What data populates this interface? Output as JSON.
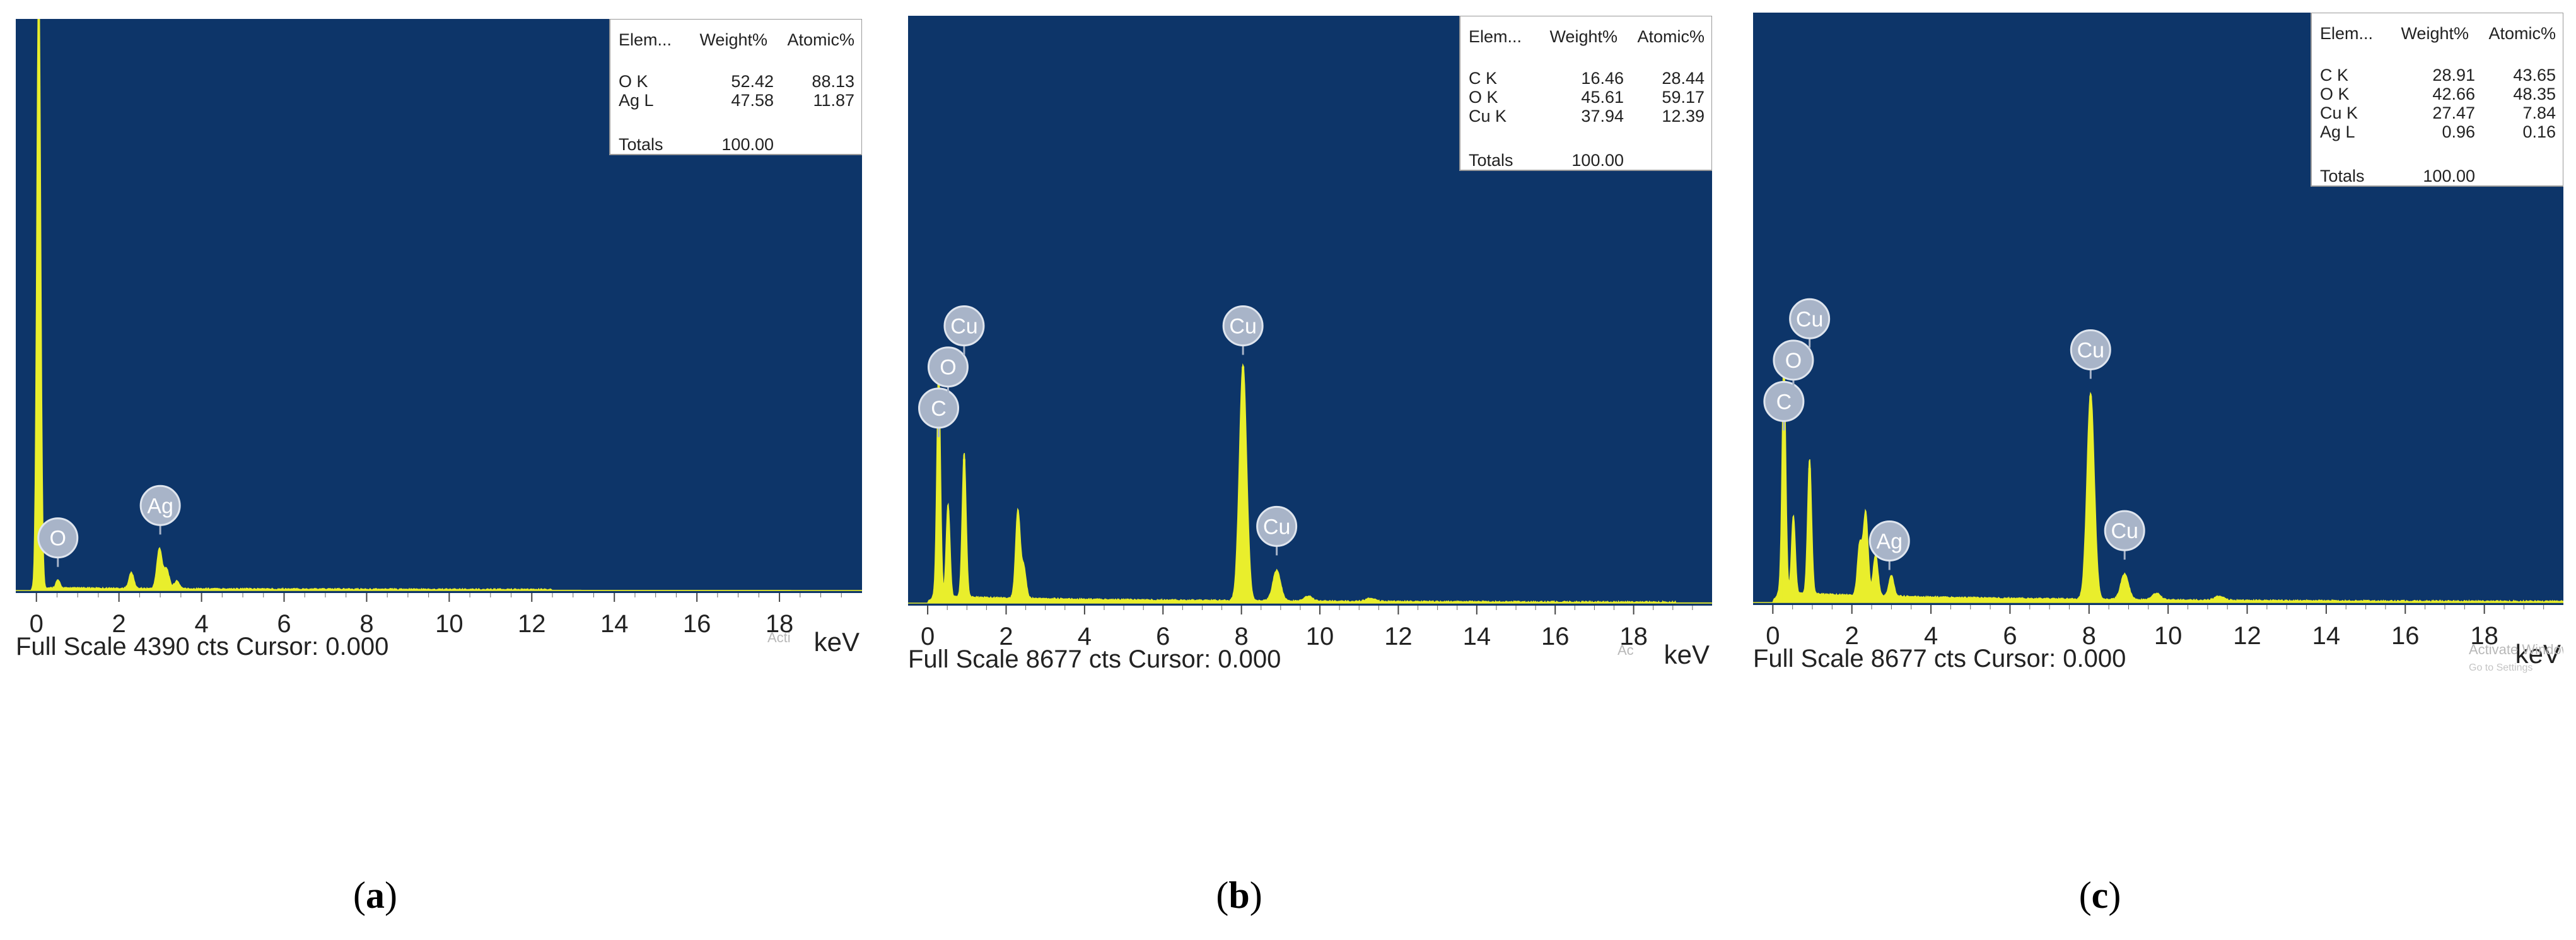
{
  "colors": {
    "plot_bg": "#0d3569",
    "spectrum": "#e9ee2c",
    "badge": "#a8b4c8",
    "badge_border": "#dfe5ee"
  },
  "chart_data": [
    {
      "type": "area",
      "panel_label": "a",
      "xlabel": "keV",
      "footer": "Full Scale 4390 cts Cursor: 0.000",
      "watermark": "Acti",
      "xlim": [
        -0.5,
        20
      ],
      "xticks": [
        "0",
        "2",
        "4",
        "6",
        "8",
        "10",
        "12",
        "14",
        "16",
        "18"
      ],
      "table": {
        "headers": [
          "Elem...",
          "Weight%",
          "Atomic%"
        ],
        "rows": [
          [
            "O K",
            "52.42",
            "88.13"
          ],
          [
            "Ag L",
            "47.58",
            "11.87"
          ]
        ],
        "totals_label": "Totals",
        "totals_value": "100.00"
      },
      "peaks": [
        {
          "x": 0.05,
          "y": 100
        },
        {
          "x": 0.08,
          "y": 30
        },
        {
          "x": 0.52,
          "y": 1.6
        },
        {
          "x": 2.3,
          "y": 3.2
        },
        {
          "x": 2.98,
          "y": 8
        },
        {
          "x": 3.15,
          "y": 4
        },
        {
          "x": 3.4,
          "y": 1.5
        }
      ],
      "background": 0.4,
      "element_labels": [
        {
          "text": "O",
          "x": 0.52,
          "y": 6.5
        },
        {
          "text": "Ag",
          "x": 3.0,
          "y": 13
        }
      ]
    },
    {
      "type": "area",
      "panel_label": "b",
      "xlabel": "keV",
      "footer": "Full Scale 8677 cts Cursor: 0.000",
      "watermark": "Ac",
      "xlim": [
        -0.5,
        20
      ],
      "xticks": [
        "0",
        "2",
        "4",
        "6",
        "8",
        "10",
        "12",
        "14",
        "16",
        "18"
      ],
      "table": {
        "headers": [
          "Elem...",
          "Weight%",
          "Atomic%"
        ],
        "rows": [
          [
            "C K",
            "16.46",
            "28.44"
          ],
          [
            "O K",
            "45.61",
            "59.17"
          ],
          [
            "Cu K",
            "37.94",
            "12.39"
          ]
        ],
        "totals_label": "Totals",
        "totals_value": "100.00"
      },
      "peaks": [
        {
          "x": 0.28,
          "y": 44
        },
        {
          "x": 0.52,
          "y": 18
        },
        {
          "x": 0.93,
          "y": 28
        },
        {
          "x": 2.3,
          "y": 17
        },
        {
          "x": 2.45,
          "y": 6
        },
        {
          "x": 8.04,
          "y": 46
        },
        {
          "x": 8.9,
          "y": 6
        },
        {
          "x": 9.7,
          "y": 1
        },
        {
          "x": 11.3,
          "y": 0.6
        }
      ],
      "background": 1.2,
      "element_labels": [
        {
          "text": "C",
          "x": 0.28,
          "y": 34
        },
        {
          "text": "O",
          "x": 0.52,
          "y": 42
        },
        {
          "text": "Cu",
          "x": 0.93,
          "y": 50
        },
        {
          "text": "Cu",
          "x": 8.04,
          "y": 50
        },
        {
          "text": "Cu",
          "x": 8.9,
          "y": 11
        }
      ]
    },
    {
      "type": "area",
      "panel_label": "c",
      "xlabel": "keV",
      "footer": "Full Scale 8677 cts Cursor: 0.000",
      "watermark": "Activate Windows",
      "watermark2": "Go to Settings",
      "xlim": [
        -0.5,
        20
      ],
      "xticks": [
        "0",
        "2",
        "4",
        "6",
        "8",
        "10",
        "12",
        "14",
        "16",
        "18"
      ],
      "table": {
        "headers": [
          "Elem...",
          "Weight%",
          "Atomic%"
        ],
        "rows": [
          [
            "C K",
            "28.91",
            "43.65"
          ],
          [
            "O K",
            "42.66",
            "48.35"
          ],
          [
            "Cu K",
            "27.47",
            "7.84"
          ],
          [
            "Ag L",
            "0.96",
            "0.16"
          ]
        ],
        "totals_label": "Totals",
        "totals_value": "100.00"
      },
      "peaks": [
        {
          "x": 0.28,
          "y": 45
        },
        {
          "x": 0.52,
          "y": 15
        },
        {
          "x": 0.93,
          "y": 26
        },
        {
          "x": 2.2,
          "y": 10
        },
        {
          "x": 2.35,
          "y": 16
        },
        {
          "x": 2.6,
          "y": 8
        },
        {
          "x": 3.0,
          "y": 4
        },
        {
          "x": 8.04,
          "y": 40
        },
        {
          "x": 8.9,
          "y": 5
        },
        {
          "x": 9.7,
          "y": 1.3
        },
        {
          "x": 11.3,
          "y": 0.8
        }
      ],
      "background": 1.8,
      "element_labels": [
        {
          "text": "C",
          "x": 0.28,
          "y": 35
        },
        {
          "text": "O",
          "x": 0.52,
          "y": 43
        },
        {
          "text": "Cu",
          "x": 0.93,
          "y": 51
        },
        {
          "text": "Ag",
          "x": 2.95,
          "y": 8
        },
        {
          "text": "Cu",
          "x": 8.04,
          "y": 45
        },
        {
          "text": "Cu",
          "x": 8.9,
          "y": 10
        }
      ]
    }
  ]
}
